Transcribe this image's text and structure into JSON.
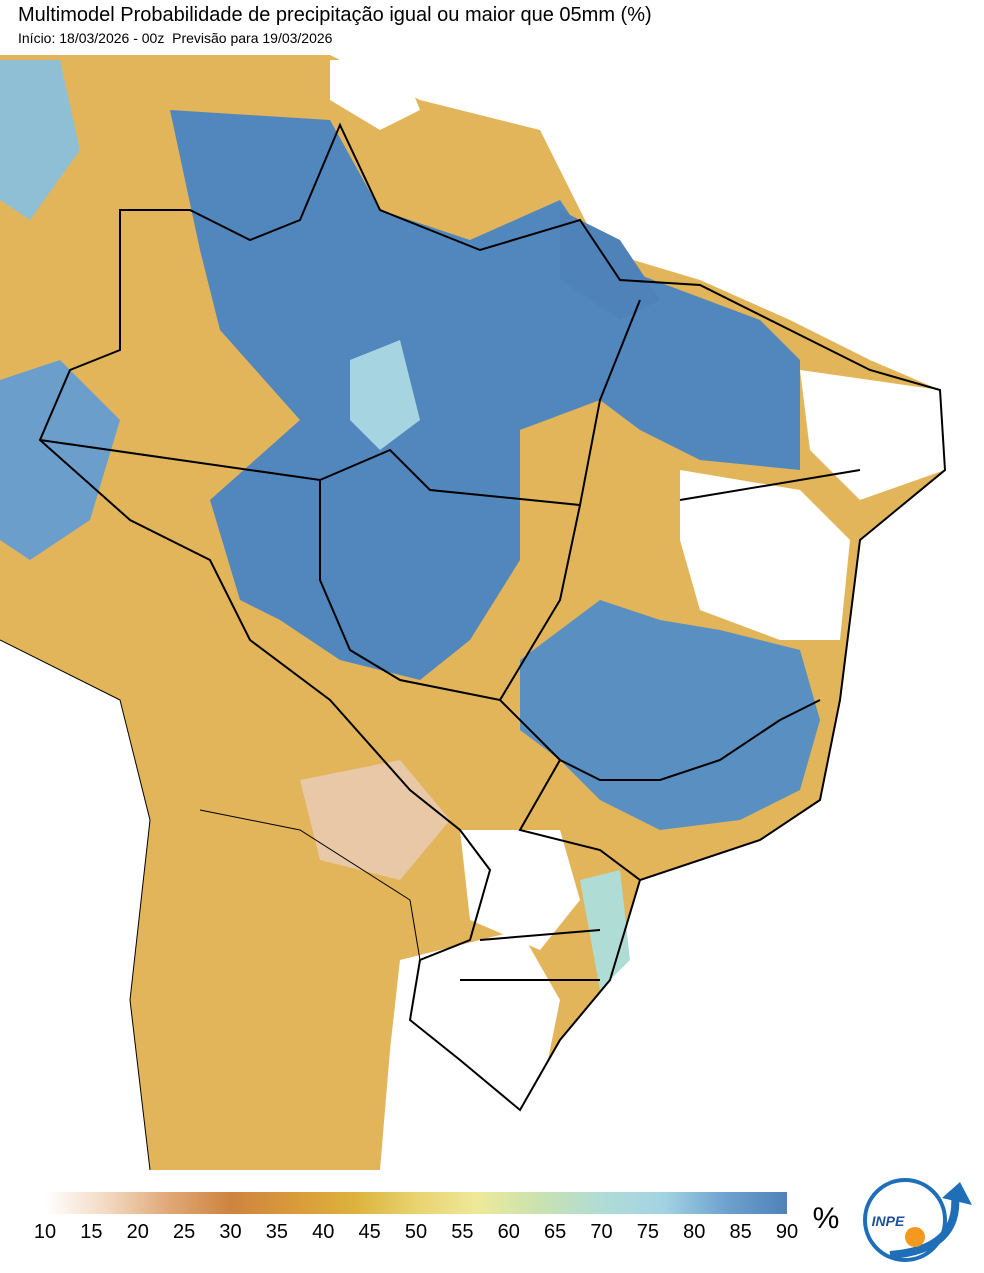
{
  "header": {
    "title": "Multimodel Probabilidade de precipitação igual ou maior que 05mm (%)",
    "start": "Início: 18/03/2026 - 00z",
    "forecast": "Previsão para 19/03/2026"
  },
  "colorbar": {
    "ticks": [
      10,
      15,
      20,
      25,
      30,
      35,
      40,
      45,
      50,
      55,
      60,
      65,
      70,
      75,
      80,
      85,
      90
    ],
    "range": [
      10,
      90
    ],
    "unit": "%",
    "colors": [
      "#ffffff",
      "#f3d9c2",
      "#e0a877",
      "#cd843f",
      "#d99a3a",
      "#ddb23c",
      "#e8d370",
      "#eee99a",
      "#c9e2b0",
      "#b0dcd6",
      "#a3d3e3",
      "#6fa2cf",
      "#4f82b8"
    ]
  },
  "logo": {
    "label": "INPE"
  }
}
